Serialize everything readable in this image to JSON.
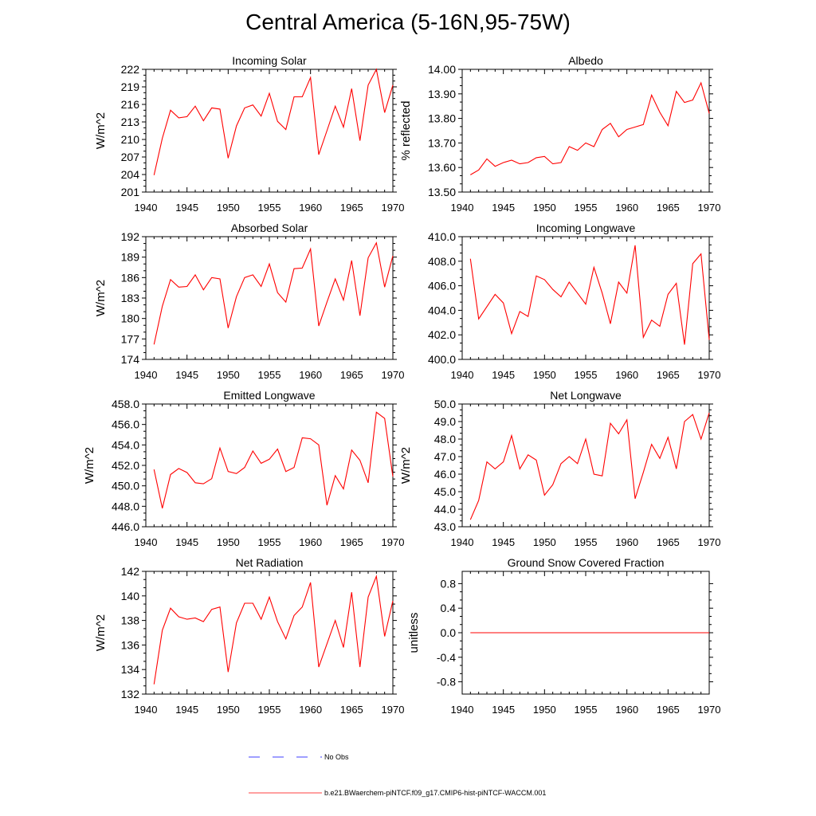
{
  "title": "Central America (5-16N,95-75W)",
  "colors": {
    "model": "#ff0000",
    "obs": "#0000ff",
    "axis": "#000000"
  },
  "legend": {
    "obs_label": "No Obs",
    "model_label": "b.e21.BWaerchem-piNTCF.f09_g17.CMIP6-hist-piNTCF-WACCM.001"
  },
  "chart_data": [
    {
      "type": "line",
      "title": "Incoming Solar",
      "ylabel": "W/m^2",
      "xlim": [
        1940,
        1970
      ],
      "xticks": [
        1940,
        1945,
        1950,
        1955,
        1960,
        1965,
        1970
      ],
      "ylim": [
        201,
        222
      ],
      "yticks": [
        201,
        204,
        207,
        210,
        213,
        216,
        219,
        222
      ],
      "ydecimals": 0,
      "x": [
        1941,
        1942,
        1943,
        1944,
        1945,
        1946,
        1947,
        1948,
        1949,
        1950,
        1951,
        1952,
        1953,
        1954,
        1955,
        1956,
        1957,
        1958,
        1959,
        1960,
        1961,
        1962,
        1963,
        1964,
        1965,
        1966,
        1967,
        1968,
        1969,
        1970
      ],
      "series": [
        {
          "name": "b.e21.BWaerchem-piNTCF.f09_g17.CMIP6-hist-piNTCF-WACCM.001",
          "values": [
            203.9,
            210.2,
            215.0,
            213.7,
            213.9,
            215.7,
            213.2,
            215.4,
            215.2,
            206.8,
            212.3,
            215.4,
            215.9,
            214.0,
            217.9,
            213.1,
            211.7,
            217.3,
            217.3,
            220.6,
            207.4,
            211.5,
            215.7,
            212.1,
            218.7,
            209.8,
            219.3,
            222.0,
            214.6,
            219.3
          ]
        }
      ]
    },
    {
      "type": "line",
      "title": "Albedo",
      "ylabel": "% reflected",
      "xlim": [
        1940,
        1970
      ],
      "xticks": [
        1940,
        1945,
        1950,
        1955,
        1960,
        1965,
        1970
      ],
      "ylim": [
        13.5,
        14.0
      ],
      "yticks": [
        13.5,
        13.6,
        13.7,
        13.8,
        13.9,
        14.0
      ],
      "ydecimals": 2,
      "x": [
        1941,
        1942,
        1943,
        1944,
        1945,
        1946,
        1947,
        1948,
        1949,
        1950,
        1951,
        1952,
        1953,
        1954,
        1955,
        1956,
        1957,
        1958,
        1959,
        1960,
        1961,
        1962,
        1963,
        1964,
        1965,
        1966,
        1967,
        1968,
        1969,
        1970
      ],
      "series": [
        {
          "name": "b.e21.BWaerchem-piNTCF.f09_g17.CMIP6-hist-piNTCF-WACCM.001",
          "values": [
            13.57,
            13.59,
            13.635,
            13.605,
            13.62,
            13.63,
            13.615,
            13.62,
            13.64,
            13.645,
            13.615,
            13.62,
            13.685,
            13.67,
            13.7,
            13.685,
            13.755,
            13.78,
            13.725,
            13.755,
            13.765,
            13.775,
            13.895,
            13.825,
            13.77,
            13.91,
            13.865,
            13.875,
            13.945,
            13.82
          ]
        }
      ]
    },
    {
      "type": "line",
      "title": "Absorbed Solar",
      "ylabel": "W/m^2",
      "xlim": [
        1940,
        1970
      ],
      "xticks": [
        1940,
        1945,
        1950,
        1955,
        1960,
        1965,
        1970
      ],
      "ylim": [
        174,
        192
      ],
      "yticks": [
        174,
        177,
        180,
        183,
        186,
        189,
        192
      ],
      "ydecimals": 0,
      "x": [
        1941,
        1942,
        1943,
        1944,
        1945,
        1946,
        1947,
        1948,
        1949,
        1950,
        1951,
        1952,
        1953,
        1954,
        1955,
        1956,
        1957,
        1958,
        1959,
        1960,
        1961,
        1962,
        1963,
        1964,
        1965,
        1966,
        1967,
        1968,
        1969,
        1970
      ],
      "series": [
        {
          "name": "b.e21.BWaerchem-piNTCF.f09_g17.CMIP6-hist-piNTCF-WACCM.001",
          "values": [
            176.2,
            181.8,
            185.7,
            184.6,
            184.7,
            186.4,
            184.2,
            186.0,
            185.8,
            178.6,
            183.2,
            186.0,
            186.4,
            184.7,
            188.0,
            183.8,
            182.4,
            187.3,
            187.4,
            190.2,
            178.9,
            182.4,
            185.8,
            182.7,
            188.5,
            180.4,
            188.9,
            191.1,
            184.6,
            189.2
          ]
        }
      ]
    },
    {
      "type": "line",
      "title": "Incoming Longwave",
      "ylabel": "",
      "xlim": [
        1940,
        1970
      ],
      "xticks": [
        1940,
        1945,
        1950,
        1955,
        1960,
        1965,
        1970
      ],
      "ylim": [
        400.0,
        410.0
      ],
      "yticks": [
        400.0,
        402.0,
        404.0,
        406.0,
        408.0,
        410.0
      ],
      "ydecimals": 1,
      "x": [
        1941,
        1942,
        1943,
        1944,
        1945,
        1946,
        1947,
        1948,
        1949,
        1950,
        1951,
        1952,
        1953,
        1954,
        1955,
        1956,
        1957,
        1958,
        1959,
        1960,
        1961,
        1962,
        1963,
        1964,
        1965,
        1966,
        1967,
        1968,
        1969,
        1970
      ],
      "series": [
        {
          "name": "b.e21.BWaerchem-piNTCF.f09_g17.CMIP6-hist-piNTCF-WACCM.001",
          "values": [
            408.2,
            403.3,
            404.3,
            405.3,
            404.6,
            402.1,
            403.9,
            403.5,
            406.8,
            406.5,
            405.7,
            405.1,
            406.3,
            405.4,
            404.5,
            407.5,
            405.4,
            402.9,
            406.3,
            405.4,
            409.3,
            401.8,
            403.2,
            402.7,
            405.3,
            406.2,
            401.2,
            407.8,
            408.6,
            401.6
          ]
        }
      ]
    },
    {
      "type": "line",
      "title": "Emitted Longwave",
      "ylabel": "W/m^2",
      "xlim": [
        1940,
        1970
      ],
      "xticks": [
        1940,
        1945,
        1950,
        1955,
        1960,
        1965,
        1970
      ],
      "ylim": [
        446.0,
        458.0
      ],
      "yticks": [
        446.0,
        448.0,
        450.0,
        452.0,
        454.0,
        456.0,
        458.0
      ],
      "ydecimals": 1,
      "x": [
        1941,
        1942,
        1943,
        1944,
        1945,
        1946,
        1947,
        1948,
        1949,
        1950,
        1951,
        1952,
        1953,
        1954,
        1955,
        1956,
        1957,
        1958,
        1959,
        1960,
        1961,
        1962,
        1963,
        1964,
        1965,
        1966,
        1967,
        1968,
        1969,
        1970
      ],
      "series": [
        {
          "name": "b.e21.BWaerchem-piNTCF.f09_g17.CMIP6-hist-piNTCF-WACCM.001",
          "values": [
            451.6,
            447.8,
            451.1,
            451.7,
            451.3,
            450.3,
            450.2,
            450.7,
            453.7,
            451.4,
            451.2,
            451.8,
            453.4,
            452.2,
            452.6,
            453.6,
            451.4,
            451.8,
            454.7,
            454.6,
            454.0,
            448.1,
            451.0,
            449.7,
            453.5,
            452.5,
            450.3,
            457.2,
            456.6,
            450.9
          ]
        }
      ]
    },
    {
      "type": "line",
      "title": "Net Longwave",
      "ylabel": "W/m^2",
      "xlim": [
        1940,
        1970
      ],
      "xticks": [
        1940,
        1945,
        1950,
        1955,
        1960,
        1965,
        1970
      ],
      "ylim": [
        43.0,
        50.0
      ],
      "yticks": [
        43.0,
        44.0,
        45.0,
        46.0,
        47.0,
        48.0,
        49.0,
        50.0
      ],
      "ydecimals": 1,
      "x": [
        1941,
        1942,
        1943,
        1944,
        1945,
        1946,
        1947,
        1948,
        1949,
        1950,
        1951,
        1952,
        1953,
        1954,
        1955,
        1956,
        1957,
        1958,
        1959,
        1960,
        1961,
        1962,
        1963,
        1964,
        1965,
        1966,
        1967,
        1968,
        1969,
        1970
      ],
      "series": [
        {
          "name": "b.e21.BWaerchem-piNTCF.f09_g17.CMIP6-hist-piNTCF-WACCM.001",
          "values": [
            43.4,
            44.5,
            46.7,
            46.3,
            46.7,
            48.2,
            46.3,
            47.1,
            46.8,
            44.8,
            45.4,
            46.6,
            47.0,
            46.6,
            48.0,
            46.0,
            45.9,
            48.9,
            48.3,
            49.1,
            44.6,
            46.1,
            47.7,
            46.9,
            48.1,
            46.3,
            49.0,
            49.4,
            48.0,
            49.5
          ]
        }
      ]
    },
    {
      "type": "line",
      "title": "Net Radiation",
      "ylabel": "W/m^2",
      "xlim": [
        1940,
        1970
      ],
      "xticks": [
        1940,
        1945,
        1950,
        1955,
        1960,
        1965,
        1970
      ],
      "ylim": [
        132,
        142
      ],
      "yticks": [
        132,
        134,
        136,
        138,
        140,
        142
      ],
      "ydecimals": 0,
      "x": [
        1941,
        1942,
        1943,
        1944,
        1945,
        1946,
        1947,
        1948,
        1949,
        1950,
        1951,
        1952,
        1953,
        1954,
        1955,
        1956,
        1957,
        1958,
        1959,
        1960,
        1961,
        1962,
        1963,
        1964,
        1965,
        1966,
        1967,
        1968,
        1969,
        1970
      ],
      "series": [
        {
          "name": "b.e21.BWaerchem-piNTCF.f09_g17.CMIP6-hist-piNTCF-WACCM.001",
          "values": [
            132.8,
            137.2,
            139.0,
            138.3,
            138.1,
            138.2,
            137.9,
            138.9,
            139.1,
            133.8,
            137.8,
            139.4,
            139.4,
            138.1,
            139.9,
            137.9,
            136.5,
            138.4,
            139.1,
            141.1,
            134.2,
            136.1,
            138.0,
            135.8,
            140.3,
            134.2,
            139.9,
            141.6,
            136.7,
            139.6
          ]
        }
      ]
    },
    {
      "type": "line",
      "title": "Ground Snow Covered Fraction",
      "ylabel": "unitless",
      "xlim": [
        1940,
        1970
      ],
      "xticks": [
        1940,
        1945,
        1950,
        1955,
        1960,
        1965,
        1970
      ],
      "ylim": [
        -1.0,
        1.0
      ],
      "yticks": [
        -0.8,
        -0.4,
        0.0,
        0.4,
        0.8
      ],
      "ydecimals": 1,
      "x": [
        1941,
        1942,
        1943,
        1944,
        1945,
        1946,
        1947,
        1948,
        1949,
        1950,
        1951,
        1952,
        1953,
        1954,
        1955,
        1956,
        1957,
        1958,
        1959,
        1960,
        1961,
        1962,
        1963,
        1964,
        1965,
        1966,
        1967,
        1968,
        1969,
        1970
      ],
      "series": [
        {
          "name": "b.e21.BWaerchem-piNTCF.f09_g17.CMIP6-hist-piNTCF-WACCM.001",
          "values": [
            0,
            0,
            0,
            0,
            0,
            0,
            0,
            0,
            0,
            0,
            0,
            0,
            0,
            0,
            0,
            0,
            0,
            0,
            0,
            0,
            0,
            0,
            0,
            0,
            0,
            0,
            0,
            0,
            0,
            0
          ]
        }
      ]
    }
  ]
}
